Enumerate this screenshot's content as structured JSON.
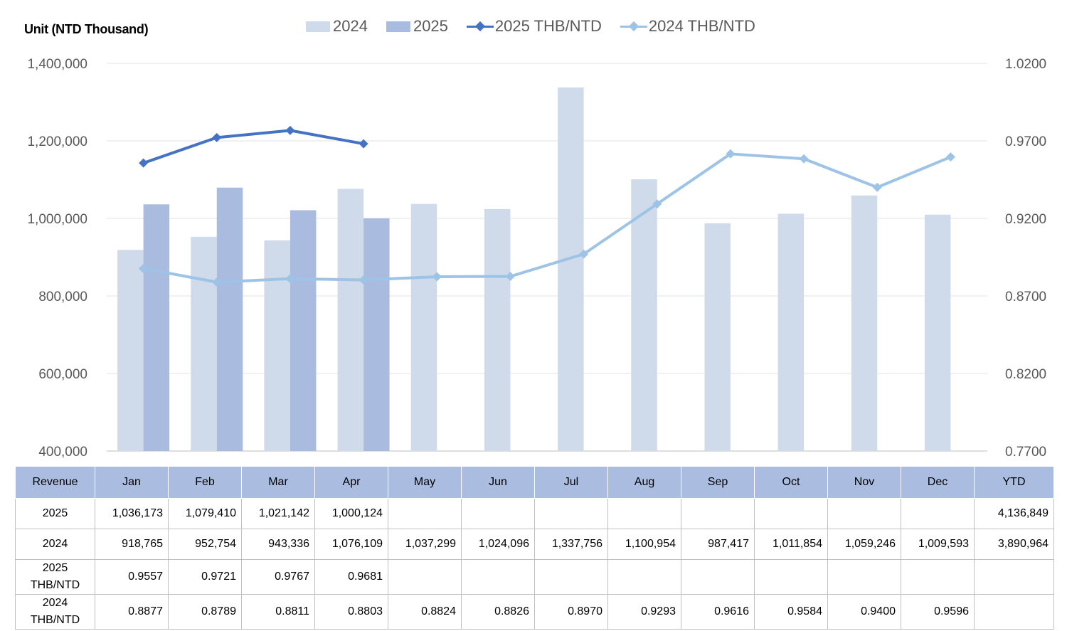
{
  "unit_label": "Unit (NTD  Thousand)",
  "legend": [
    {
      "label": "2024",
      "kind": "bar",
      "color": "#cfdaeb"
    },
    {
      "label": "2025",
      "kind": "bar",
      "color": "#a9bcdf"
    },
    {
      "label": "2025 THB/NTD",
      "kind": "line",
      "color": "#4472c4"
    },
    {
      "label": "2024 THB/NTD",
      "kind": "line",
      "color": "#9dc3e6"
    }
  ],
  "chart_data": {
    "type": "bar",
    "categories": [
      "Jan",
      "Feb",
      "Mar",
      "Apr",
      "May",
      "Jun",
      "Jul",
      "Aug",
      "Sep",
      "Oct",
      "Nov",
      "Dec"
    ],
    "series": [
      {
        "name": "2024",
        "type": "bar",
        "axis": "left",
        "color": "#cfdaeb",
        "values": [
          918765,
          952754,
          943336,
          1076109,
          1037299,
          1024096,
          1337756,
          1100954,
          987417,
          1011854,
          1059246,
          1009593
        ]
      },
      {
        "name": "2025",
        "type": "bar",
        "axis": "left",
        "color": "#a9bcdf",
        "values": [
          1036173,
          1079410,
          1021142,
          1000124,
          null,
          null,
          null,
          null,
          null,
          null,
          null,
          null
        ]
      },
      {
        "name": "2025 THB/NTD",
        "type": "line",
        "axis": "right",
        "color": "#4472c4",
        "values": [
          0.9557,
          0.9721,
          0.9767,
          0.9681,
          null,
          null,
          null,
          null,
          null,
          null,
          null,
          null
        ]
      },
      {
        "name": "2024 THB/NTD",
        "type": "line",
        "axis": "right",
        "color": "#9dc3e6",
        "values": [
          0.8877,
          0.8789,
          0.8811,
          0.8803,
          0.8824,
          0.8826,
          0.897,
          0.9293,
          0.9616,
          0.9584,
          0.94,
          0.9596
        ]
      }
    ],
    "y_left": {
      "lim": [
        400000,
        1400000
      ],
      "ticks": [
        "400,000",
        "600,000",
        "800,000",
        "1,000,000",
        "1,200,000",
        "1,400,000"
      ]
    },
    "y_right": {
      "lim": [
        0.77,
        1.02
      ],
      "ticks": [
        "0.7700",
        "0.8200",
        "0.8700",
        "0.9200",
        "0.9700",
        "1.0200"
      ]
    },
    "grid": true,
    "legend_position": "top"
  },
  "table": {
    "header": [
      "Revenue",
      "Jan",
      "Feb",
      "Mar",
      "Apr",
      "May",
      "Jun",
      "Jul",
      "Aug",
      "Sep",
      "Oct",
      "Nov",
      "Dec",
      "YTD"
    ],
    "rows": [
      [
        "2025",
        "1,036,173",
        "1,079,410",
        "1,021,142",
        "1,000,124",
        "",
        "",
        "",
        "",
        "",
        "",
        "",
        "",
        "4,136,849"
      ],
      [
        "2024",
        "918,765",
        "952,754",
        "943,336",
        "1,076,109",
        "1,037,299",
        "1,024,096",
        "1,337,756",
        "1,100,954",
        "987,417",
        "1,011,854",
        "1,059,246",
        "1,009,593",
        "3,890,964"
      ],
      [
        "2025 THB/NTD",
        "0.9557",
        "0.9721",
        "0.9767",
        "0.9681",
        "",
        "",
        "",
        "",
        "",
        "",
        "",
        "",
        ""
      ],
      [
        "2024 THB/NTD",
        "0.8877",
        "0.8789",
        "0.8811",
        "0.8803",
        "0.8824",
        "0.8826",
        "0.8970",
        "0.9293",
        "0.9616",
        "0.9584",
        "0.9400",
        "0.9596",
        ""
      ]
    ]
  }
}
